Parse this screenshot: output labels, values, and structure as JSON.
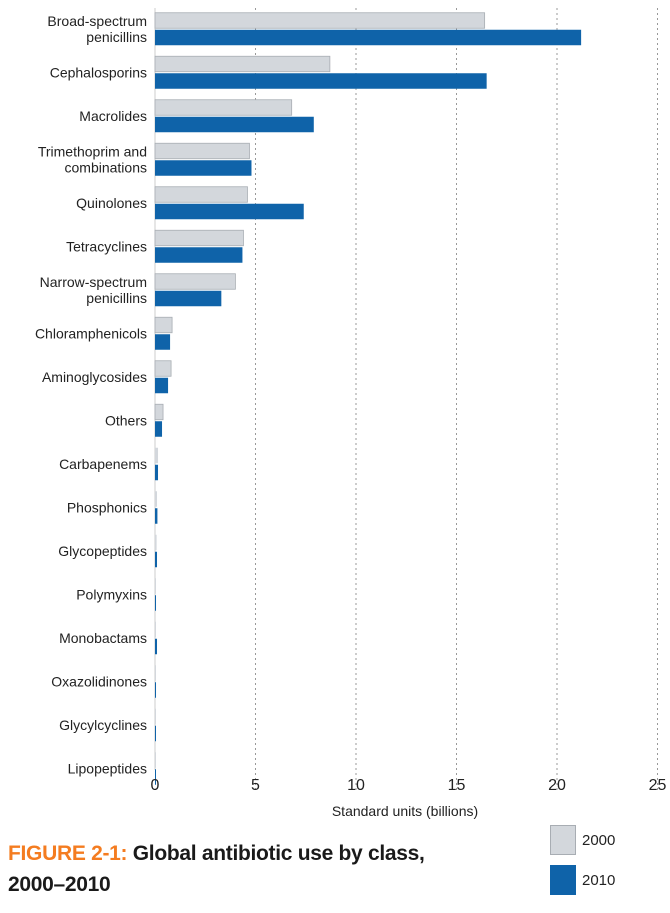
{
  "caption": {
    "prefix": "FIGURE 2-1:",
    "title": "Global antibiotic use by class, 2000–2010"
  },
  "colors": {
    "series_2000": "#d3d7dc",
    "series_2010": "#0f63a9",
    "caption_prefix": "#f47c20",
    "gridline": "#999999"
  },
  "chart_data": {
    "type": "bar",
    "orientation": "horizontal",
    "xlabel": "Standard units (billions)",
    "xlim": [
      0,
      25
    ],
    "xticks": [
      0,
      5,
      10,
      15,
      20,
      25
    ],
    "grid": "vertical dashed",
    "legend_position": "bottom-right",
    "categories": [
      [
        "Broad-spectrum",
        "penicillins"
      ],
      [
        "Cephalosporins"
      ],
      [
        "Macrolides"
      ],
      [
        "Trimethoprim and",
        "combinations"
      ],
      [
        "Quinolones"
      ],
      [
        "Tetracyclines"
      ],
      [
        "Narrow-spectrum",
        "penicillins"
      ],
      [
        "Chloramphenicols"
      ],
      [
        "Aminoglycosides"
      ],
      [
        "Others"
      ],
      [
        "Carbapenems"
      ],
      [
        "Phosphonics"
      ],
      [
        "Glycopeptides"
      ],
      [
        "Polymyxins"
      ],
      [
        "Monobactams"
      ],
      [
        "Oxazolidinones"
      ],
      [
        "Glycylcyclines"
      ],
      [
        "Lipopeptides"
      ]
    ],
    "series": [
      {
        "name": "2000",
        "values": [
          16.4,
          8.7,
          6.8,
          4.7,
          4.6,
          4.4,
          4.0,
          0.85,
          0.8,
          0.4,
          0.15,
          0.1,
          0.08,
          0.05,
          0.05,
          0.03,
          0.02,
          0.01
        ]
      },
      {
        "name": "2010",
        "values": [
          21.2,
          16.5,
          7.9,
          4.8,
          7.4,
          4.35,
          3.3,
          0.75,
          0.65,
          0.35,
          0.15,
          0.12,
          0.1,
          0.05,
          0.1,
          0.05,
          0.03,
          0.02
        ]
      }
    ]
  }
}
